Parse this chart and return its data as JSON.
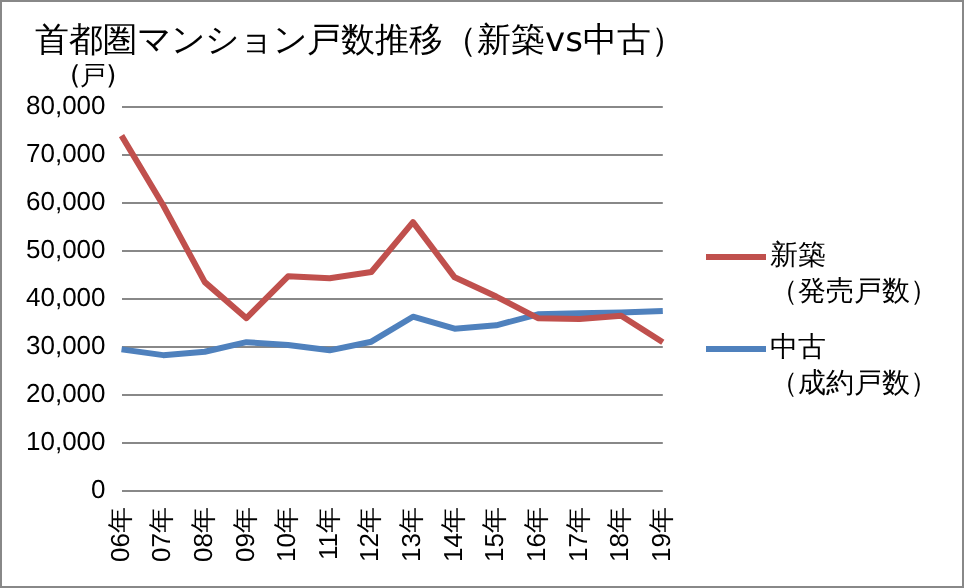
{
  "chart_data": {
    "type": "line",
    "title": "首都圏マンション戸数推移（新築vs中古）",
    "ylabel": "(戸)",
    "categories": [
      "06年",
      "07年",
      "08年",
      "09年",
      "10年",
      "11年",
      "12年",
      "13年",
      "14年",
      "15年",
      "16年",
      "17年",
      "18年",
      "19年"
    ],
    "series": [
      {
        "name": "新築（発売戸数）",
        "color": "#c0504d",
        "values": [
          74000,
          59500,
          43500,
          36000,
          44700,
          44300,
          45600,
          56000,
          44500,
          40500,
          36000,
          35800,
          36500,
          31000
        ]
      },
      {
        "name": "中古（成約戸数）",
        "color": "#4f81bd",
        "values": [
          29500,
          28300,
          29000,
          31000,
          30400,
          29300,
          31100,
          36300,
          33800,
          34500,
          36800,
          37000,
          37200,
          37500
        ]
      }
    ],
    "ylim": [
      0,
      80000
    ],
    "yticks": [
      0,
      {
        "value": 10000,
        "label": "10,000"
      },
      {
        "value": 20000,
        "label": "20,000"
      },
      {
        "value": 30000,
        "label": "30,000"
      },
      {
        "value": 40000,
        "label": "40,000"
      },
      {
        "value": 50000,
        "label": "50,000"
      },
      {
        "value": 60000,
        "label": "60,000"
      },
      {
        "value": 70000,
        "label": "70,000"
      },
      {
        "value": 80000,
        "label": "80,000"
      }
    ],
    "grid": "y",
    "legend": "right",
    "marker": "none",
    "line_style": "solid"
  }
}
